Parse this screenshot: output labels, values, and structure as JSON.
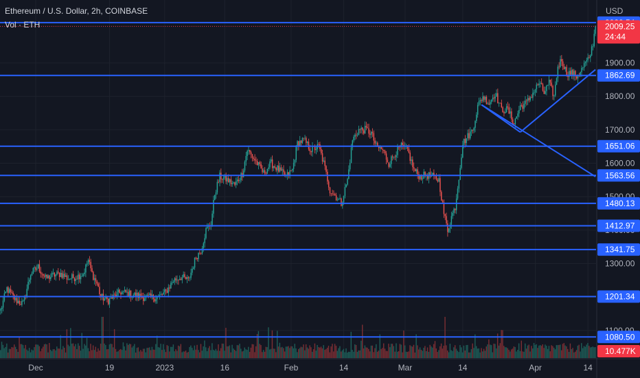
{
  "header": {
    "title": "Ethereum / U.S. Dollar, 2h, COINBASE",
    "volume_label": "Vol · ETH"
  },
  "price_axis": {
    "currency": "USD",
    "ticks": [
      {
        "label": "1900.00",
        "value": 1900
      },
      {
        "label": "1800.00",
        "value": 1800
      },
      {
        "label": "1700.00",
        "value": 1700
      },
      {
        "label": "1600.00",
        "value": 1600
      },
      {
        "label": "1500.00",
        "value": 1500
      },
      {
        "label": "1400.00",
        "value": 1400
      },
      {
        "label": "1300.00",
        "value": 1300
      },
      {
        "label": "1200.00",
        "value": 1200
      },
      {
        "label": "1100.00",
        "value": 1100
      }
    ]
  },
  "chart_data": {
    "type": "candlestick",
    "symbol": "Ethereum / U.S. Dollar",
    "interval": "2h",
    "exchange": "COINBASE",
    "y_unit": "USD",
    "y_range": [
      1040,
      2080
    ],
    "x_ticks": [
      {
        "label": "Dec",
        "index": 28
      },
      {
        "label": "19",
        "index": 87
      },
      {
        "label": "2023",
        "index": 131
      },
      {
        "label": "16",
        "index": 179
      },
      {
        "label": "Feb",
        "index": 232
      },
      {
        "label": "14",
        "index": 274
      },
      {
        "label": "Mar",
        "index": 323
      },
      {
        "label": "14",
        "index": 369
      },
      {
        "label": "Apr",
        "index": 427
      },
      {
        "label": "14",
        "index": 469
      }
    ],
    "price_waypoints": [
      {
        "i": 0,
        "p": 1160
      },
      {
        "i": 5,
        "p": 1225
      },
      {
        "i": 12,
        "p": 1190
      },
      {
        "i": 18,
        "p": 1180
      },
      {
        "i": 24,
        "p": 1270
      },
      {
        "i": 30,
        "p": 1290
      },
      {
        "i": 36,
        "p": 1255
      },
      {
        "i": 42,
        "p": 1265
      },
      {
        "i": 48,
        "p": 1270
      },
      {
        "i": 54,
        "p": 1255
      },
      {
        "i": 60,
        "p": 1260
      },
      {
        "i": 66,
        "p": 1270
      },
      {
        "i": 70,
        "p": 1310
      },
      {
        "i": 73,
        "p": 1270
      },
      {
        "i": 77,
        "p": 1240
      },
      {
        "i": 80,
        "p": 1200
      },
      {
        "i": 86,
        "p": 1190
      },
      {
        "i": 90,
        "p": 1200
      },
      {
        "i": 96,
        "p": 1215
      },
      {
        "i": 102,
        "p": 1210
      },
      {
        "i": 108,
        "p": 1205
      },
      {
        "i": 114,
        "p": 1200
      },
      {
        "i": 120,
        "p": 1198
      },
      {
        "i": 126,
        "p": 1200
      },
      {
        "i": 132,
        "p": 1215
      },
      {
        "i": 138,
        "p": 1250
      },
      {
        "i": 144,
        "p": 1260
      },
      {
        "i": 150,
        "p": 1250
      },
      {
        "i": 156,
        "p": 1320
      },
      {
        "i": 160,
        "p": 1340
      },
      {
        "i": 164,
        "p": 1400
      },
      {
        "i": 168,
        "p": 1420
      },
      {
        "i": 171,
        "p": 1510
      },
      {
        "i": 175,
        "p": 1560
      },
      {
        "i": 181,
        "p": 1550
      },
      {
        "i": 187,
        "p": 1535
      },
      {
        "i": 193,
        "p": 1570
      },
      {
        "i": 197,
        "p": 1640
      },
      {
        "i": 203,
        "p": 1610
      },
      {
        "i": 210,
        "p": 1570
      },
      {
        "i": 216,
        "p": 1600
      },
      {
        "i": 222,
        "p": 1580
      },
      {
        "i": 228,
        "p": 1560
      },
      {
        "i": 233,
        "p": 1580
      },
      {
        "i": 237,
        "p": 1660
      },
      {
        "i": 242,
        "p": 1670
      },
      {
        "i": 248,
        "p": 1640
      },
      {
        "i": 254,
        "p": 1650
      },
      {
        "i": 258,
        "p": 1600
      },
      {
        "i": 263,
        "p": 1520
      },
      {
        "i": 268,
        "p": 1500
      },
      {
        "i": 272,
        "p": 1480
      },
      {
        "i": 277,
        "p": 1550
      },
      {
        "i": 281,
        "p": 1670
      },
      {
        "i": 286,
        "p": 1700
      },
      {
        "i": 292,
        "p": 1700
      },
      {
        "i": 296,
        "p": 1690
      },
      {
        "i": 300,
        "p": 1650
      },
      {
        "i": 305,
        "p": 1640
      },
      {
        "i": 310,
        "p": 1600
      },
      {
        "i": 315,
        "p": 1630
      },
      {
        "i": 320,
        "p": 1650
      },
      {
        "i": 325,
        "p": 1640
      },
      {
        "i": 330,
        "p": 1580
      },
      {
        "i": 335,
        "p": 1560
      },
      {
        "i": 340,
        "p": 1565
      },
      {
        "i": 345,
        "p": 1560
      },
      {
        "i": 350,
        "p": 1550
      },
      {
        "i": 354,
        "p": 1450
      },
      {
        "i": 357,
        "p": 1400
      },
      {
        "i": 360,
        "p": 1440
      },
      {
        "i": 363,
        "p": 1470
      },
      {
        "i": 366,
        "p": 1560
      },
      {
        "i": 369,
        "p": 1660
      },
      {
        "i": 373,
        "p": 1680
      },
      {
        "i": 377,
        "p": 1700
      },
      {
        "i": 381,
        "p": 1770
      },
      {
        "i": 385,
        "p": 1800
      },
      {
        "i": 390,
        "p": 1780
      },
      {
        "i": 395,
        "p": 1810
      },
      {
        "i": 400,
        "p": 1760
      },
      {
        "i": 405,
        "p": 1760
      },
      {
        "i": 410,
        "p": 1720
      },
      {
        "i": 415,
        "p": 1770
      },
      {
        "i": 420,
        "p": 1780
      },
      {
        "i": 425,
        "p": 1810
      },
      {
        "i": 430,
        "p": 1840
      },
      {
        "i": 434,
        "p": 1810
      },
      {
        "i": 438,
        "p": 1840
      },
      {
        "i": 442,
        "p": 1800
      },
      {
        "i": 445,
        "p": 1890
      },
      {
        "i": 448,
        "p": 1910
      },
      {
        "i": 452,
        "p": 1870
      },
      {
        "i": 456,
        "p": 1870
      },
      {
        "i": 460,
        "p": 1860
      },
      {
        "i": 464,
        "p": 1880
      },
      {
        "i": 467,
        "p": 1900
      },
      {
        "i": 470,
        "p": 1910
      },
      {
        "i": 473,
        "p": 1960
      },
      {
        "i": 475,
        "p": 2009.25
      }
    ],
    "candle_count": 476,
    "horizontal_levels": [
      {
        "label": "2020.54",
        "value": 2020.54
      },
      {
        "label": "1862.69",
        "value": 1862.69
      },
      {
        "label": "1651.06",
        "value": 1651.06
      },
      {
        "label": "1563.56",
        "value": 1563.56
      },
      {
        "label": "1480.13",
        "value": 1480.13
      },
      {
        "label": "1412.97",
        "value": 1412.97
      },
      {
        "label": "1341.75",
        "value": 1341.75
      },
      {
        "label": "1201.34",
        "value": 1201.34
      },
      {
        "label": "1080.50",
        "value": 1080.5
      }
    ],
    "trend_lines": [
      {
        "from": {
          "i": 384,
          "p": 1775
        },
        "to": {
          "i": 475,
          "p": 1560
        }
      },
      {
        "from": {
          "i": 415,
          "p": 1693
        },
        "to": {
          "i": 475,
          "p": 1880
        }
      },
      {
        "from": {
          "i": 384,
          "p": 1775
        },
        "to": {
          "i": 415,
          "p": 1693
        }
      }
    ],
    "last_price": {
      "label": "2009.25",
      "countdown": "24:44",
      "value": 2009.25
    },
    "volume": {
      "label": "10.477K"
    }
  },
  "colors": {
    "background": "#131722",
    "grid": "#1e222d",
    "up": "#26a69a",
    "down": "#ef5350",
    "vol_up": "#1e5c57",
    "vol_down": "#7a2e33",
    "level_line": "#2962ff",
    "level_tag": "#2962ff",
    "last_price_tag": "#f23645",
    "axis_text": "#b2b5be"
  }
}
